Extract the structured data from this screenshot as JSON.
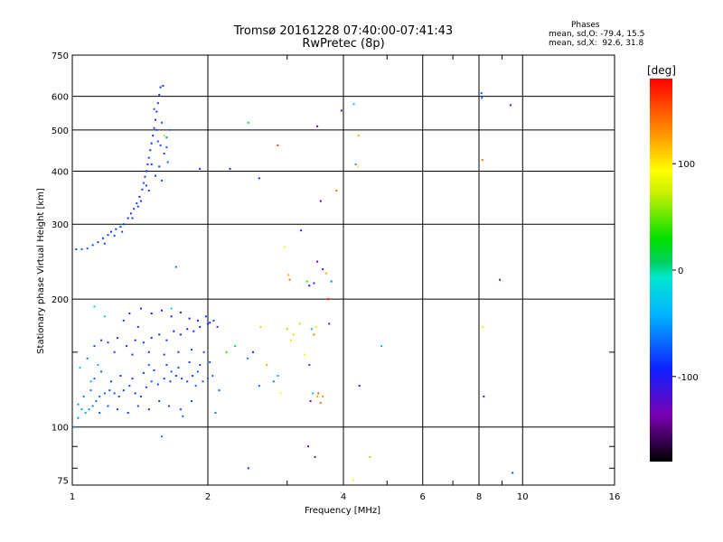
{
  "title": "Tromsø 20161228 07:40:00-07:41:43",
  "subtitle": "RwPretec (8p)",
  "stats": {
    "title": "Phases",
    "mean_o": "mean, sd,O: -79.4, 15.5",
    "mean_x": "mean, sd,X:  92.6, 31.8"
  },
  "chart_data": {
    "type": "scatter",
    "xlabel": "Frequency [MHz]",
    "ylabel": "Stationary phase Virtual Height [km]",
    "x_scale": "log",
    "y_scale": "log",
    "xlim": [
      1,
      16
    ],
    "ylim": [
      73,
      750
    ],
    "x_ticks": [
      1,
      2,
      4,
      6,
      8,
      10,
      16
    ],
    "x_tick_labels": [
      "1",
      "2",
      "4",
      "6",
      "8",
      "10",
      "16"
    ],
    "y_ticks": [
      75,
      100,
      200,
      300,
      400,
      500,
      600,
      750
    ],
    "y_tick_labels": [
      "75",
      "100",
      "200",
      "300",
      "400",
      "500",
      "600",
      "750"
    ],
    "grid": true,
    "colorbar": {
      "label": "[deg]",
      "range": [
        -180,
        180
      ],
      "ticks": [
        100,
        0,
        -100
      ],
      "tick_labels": [
        "100",
        "0",
        "-100"
      ]
    },
    "points": [
      [
        1.02,
        262,
        -80
      ],
      [
        1.05,
        262,
        -70
      ],
      [
        1.08,
        263,
        -75
      ],
      [
        1.11,
        268,
        -80
      ],
      [
        1.14,
        272,
        -85
      ],
      [
        1.17,
        278,
        -82
      ],
      [
        1.2,
        283,
        -85
      ],
      [
        1.22,
        288,
        -90
      ],
      [
        1.25,
        292,
        -85
      ],
      [
        1.28,
        296,
        -80
      ],
      [
        1.3,
        300,
        -85
      ],
      [
        1.33,
        310,
        -90
      ],
      [
        1.35,
        318,
        -85
      ],
      [
        1.37,
        326,
        -80
      ],
      [
        1.39,
        336,
        -85
      ],
      [
        1.41,
        348,
        -90
      ],
      [
        1.43,
        362,
        -85
      ],
      [
        1.44,
        375,
        -80
      ],
      [
        1.45,
        388,
        -85
      ],
      [
        1.46,
        400,
        -90
      ],
      [
        1.47,
        415,
        -85
      ],
      [
        1.48,
        430,
        -80
      ],
      [
        1.49,
        448,
        -85
      ],
      [
        1.5,
        465,
        -90
      ],
      [
        1.51,
        485,
        -85
      ],
      [
        1.52,
        505,
        -80
      ],
      [
        1.53,
        528,
        -85
      ],
      [
        1.54,
        552,
        -90
      ],
      [
        1.55,
        578,
        -85
      ],
      [
        1.56,
        605,
        -88
      ],
      [
        1.57,
        630,
        -90
      ],
      [
        1.59,
        635,
        -85
      ],
      [
        1.52,
        560,
        -70
      ],
      [
        1.58,
        520,
        -75
      ],
      [
        1.62,
        480,
        -60
      ],
      [
        1.6,
        440,
        -80
      ],
      [
        1.56,
        410,
        -85
      ],
      [
        1.53,
        390,
        -88
      ],
      [
        1.58,
        380,
        -75
      ],
      [
        1.48,
        360,
        -82
      ],
      [
        1.42,
        340,
        -86
      ],
      [
        1.36,
        310,
        -84
      ],
      [
        1.29,
        288,
        -80
      ],
      [
        1.24,
        282,
        -78
      ],
      [
        1.18,
        270,
        -82
      ],
      [
        1.62,
        455,
        -70
      ],
      [
        1.55,
        470,
        -72
      ],
      [
        1.65,
        500,
        -65
      ],
      [
        1.5,
        415,
        -88
      ],
      [
        1.46,
        370,
        -84
      ],
      [
        1.4,
        330,
        -86
      ],
      [
        1.63,
        420,
        -70
      ],
      [
        1.57,
        460,
        -78
      ],
      [
        1.54,
        500,
        -80
      ],
      [
        1.03,
        113,
        -55
      ],
      [
        1.05,
        110,
        -50
      ],
      [
        1.07,
        108,
        -45
      ],
      [
        1.09,
        110,
        -55
      ],
      [
        1.11,
        112,
        -60
      ],
      [
        1.13,
        115,
        -65
      ],
      [
        1.15,
        118,
        -70
      ],
      [
        1.18,
        120,
        -75
      ],
      [
        1.21,
        122,
        -80
      ],
      [
        1.24,
        120,
        -78
      ],
      [
        1.27,
        118,
        -82
      ],
      [
        1.3,
        122,
        -85
      ],
      [
        1.34,
        125,
        -80
      ],
      [
        1.38,
        120,
        -84
      ],
      [
        1.42,
        118,
        -82
      ],
      [
        1.46,
        124,
        -86
      ],
      [
        1.5,
        128,
        -80
      ],
      [
        1.55,
        126,
        -82
      ],
      [
        1.6,
        130,
        -84
      ],
      [
        1.65,
        128,
        -82
      ],
      [
        1.7,
        132,
        -80
      ],
      [
        1.75,
        130,
        -82
      ],
      [
        1.8,
        128,
        -78
      ],
      [
        1.85,
        132,
        -80
      ],
      [
        1.9,
        135,
        -75
      ],
      [
        1.95,
        128,
        -78
      ],
      [
        2.0,
        130,
        -70
      ],
      [
        2.05,
        132,
        -65
      ],
      [
        1.12,
        130,
        -70
      ],
      [
        1.16,
        135,
        -75
      ],
      [
        1.22,
        128,
        -82
      ],
      [
        1.28,
        132,
        -86
      ],
      [
        1.36,
        130,
        -88
      ],
      [
        1.44,
        134,
        -86
      ],
      [
        1.52,
        136,
        -84
      ],
      [
        1.62,
        140,
        -84
      ],
      [
        1.72,
        138,
        -82
      ],
      [
        1.82,
        142,
        -80
      ],
      [
        1.92,
        140,
        -78
      ],
      [
        2.02,
        142,
        -75
      ],
      [
        1.06,
        118,
        -60
      ],
      [
        1.1,
        122,
        -65
      ],
      [
        1.15,
        108,
        -70
      ],
      [
        1.2,
        112,
        -75
      ],
      [
        1.26,
        110,
        -80
      ],
      [
        1.33,
        108,
        -82
      ],
      [
        1.4,
        112,
        -84
      ],
      [
        1.48,
        110,
        -86
      ],
      [
        1.56,
        115,
        -84
      ],
      [
        1.64,
        112,
        -82
      ],
      [
        1.74,
        110,
        -80
      ],
      [
        1.84,
        115,
        -78
      ],
      [
        1.12,
        155,
        -80
      ],
      [
        1.16,
        160,
        -84
      ],
      [
        1.2,
        158,
        -86
      ],
      [
        1.26,
        162,
        -88
      ],
      [
        1.32,
        155,
        -85
      ],
      [
        1.38,
        160,
        -88
      ],
      [
        1.44,
        158,
        -86
      ],
      [
        1.5,
        162,
        -90
      ],
      [
        1.56,
        165,
        -92
      ],
      [
        1.62,
        160,
        -90
      ],
      [
        1.68,
        168,
        -95
      ],
      [
        1.74,
        165,
        -92
      ],
      [
        1.8,
        170,
        -95
      ],
      [
        1.86,
        168,
        -92
      ],
      [
        1.92,
        172,
        -90
      ],
      [
        2.0,
        175,
        -88
      ],
      [
        2.06,
        178,
        -85
      ],
      [
        2.1,
        172,
        -80
      ],
      [
        1.34,
        185,
        -90
      ],
      [
        1.42,
        190,
        -95
      ],
      [
        1.5,
        185,
        -98
      ],
      [
        1.58,
        188,
        -100
      ],
      [
        1.66,
        182,
        -100
      ],
      [
        1.74,
        186,
        -105
      ],
      [
        1.82,
        180,
        -100
      ],
      [
        1.9,
        178,
        -95
      ],
      [
        1.98,
        182,
        -90
      ],
      [
        1.24,
        150,
        -84
      ],
      [
        1.36,
        148,
        -86
      ],
      [
        1.48,
        150,
        -88
      ],
      [
        1.6,
        148,
        -86
      ],
      [
        1.72,
        150,
        -84
      ],
      [
        1.84,
        152,
        -82
      ],
      [
        1.96,
        150,
        -80
      ],
      [
        1.08,
        145,
        -60
      ],
      [
        1.1,
        128,
        -40
      ],
      [
        1.14,
        140,
        -45
      ],
      [
        1.04,
        138,
        -30
      ],
      [
        1.01,
        100,
        -50
      ],
      [
        1.03,
        105,
        -55
      ],
      [
        1.58,
        95,
        -60
      ],
      [
        1.76,
        106,
        -70
      ],
      [
        2.08,
        108,
        -60
      ],
      [
        2.02,
        176,
        -105
      ],
      [
        1.3,
        178,
        -86
      ],
      [
        1.4,
        172,
        -88
      ],
      [
        1.18,
        182,
        -30
      ],
      [
        1.12,
        192,
        -20
      ],
      [
        1.48,
        140,
        -65
      ],
      [
        1.66,
        135,
        -70
      ],
      [
        1.88,
        125,
        -72
      ],
      [
        2.12,
        122,
        -68
      ],
      [
        2.2,
        150,
        40
      ],
      [
        2.3,
        155,
        10
      ],
      [
        2.45,
        145,
        -60
      ],
      [
        2.52,
        150,
        -90
      ],
      [
        2.6,
        125,
        -70
      ],
      [
        2.7,
        140,
        120
      ],
      [
        2.8,
        128,
        -60
      ],
      [
        2.86,
        132,
        -50
      ],
      [
        2.9,
        120,
        90
      ],
      [
        3.0,
        170,
        60
      ],
      [
        3.06,
        160,
        80
      ],
      [
        3.1,
        165,
        110
      ],
      [
        3.2,
        175,
        70
      ],
      [
        3.28,
        148,
        90
      ],
      [
        3.36,
        140,
        -80
      ],
      [
        3.4,
        170,
        -40
      ],
      [
        3.44,
        165,
        140
      ],
      [
        3.48,
        172,
        80
      ],
      [
        3.5,
        118,
        120
      ],
      [
        3.52,
        120,
        150
      ],
      [
        3.56,
        114,
        145
      ],
      [
        3.6,
        118,
        130
      ],
      [
        3.38,
        115,
        -140
      ],
      [
        3.42,
        120,
        -30
      ],
      [
        3.32,
        220,
        40
      ],
      [
        3.36,
        215,
        -100
      ],
      [
        3.44,
        218,
        -90
      ],
      [
        3.5,
        245,
        -120
      ],
      [
        3.6,
        235,
        -110
      ],
      [
        3.66,
        230,
        120
      ],
      [
        3.7,
        200,
        170
      ],
      [
        3.76,
        220,
        -70
      ],
      [
        3.34,
        90,
        -120
      ],
      [
        3.46,
        85,
        -110
      ],
      [
        2.46,
        80,
        -90
      ],
      [
        2.62,
        172,
        110
      ],
      [
        2.6,
        385,
        -90
      ],
      [
        2.86,
        460,
        160
      ],
      [
        2.96,
        265,
        100
      ],
      [
        3.02,
        228,
        120
      ],
      [
        3.04,
        222,
        140
      ],
      [
        3.22,
        290,
        -100
      ],
      [
        3.5,
        510,
        -120
      ],
      [
        3.56,
        340,
        -120
      ],
      [
        3.96,
        555,
        -130
      ],
      [
        4.22,
        575,
        -30
      ],
      [
        4.26,
        415,
        -50
      ],
      [
        4.3,
        410,
        100
      ],
      [
        4.32,
        485,
        120
      ],
      [
        4.34,
        125,
        -100
      ],
      [
        4.58,
        85,
        60
      ],
      [
        4.86,
        155,
        -30
      ],
      [
        1.92,
        405,
        -100
      ],
      [
        2.24,
        405,
        -90
      ],
      [
        2.46,
        520,
        20
      ],
      [
        1.7,
        238,
        -70
      ],
      [
        1.66,
        190,
        -20
      ],
      [
        1.6,
        485,
        70
      ],
      [
        3.86,
        360,
        140
      ],
      [
        8.1,
        610,
        -80
      ],
      [
        8.12,
        595,
        -70
      ],
      [
        8.14,
        425,
        140
      ],
      [
        8.16,
        172,
        100
      ],
      [
        8.2,
        118,
        -120
      ],
      [
        8.9,
        222,
        -130
      ],
      [
        9.4,
        572,
        -130
      ],
      [
        9.5,
        78,
        -80
      ],
      [
        4.2,
        75,
        90
      ],
      [
        3.72,
        175,
        -120
      ]
    ]
  }
}
